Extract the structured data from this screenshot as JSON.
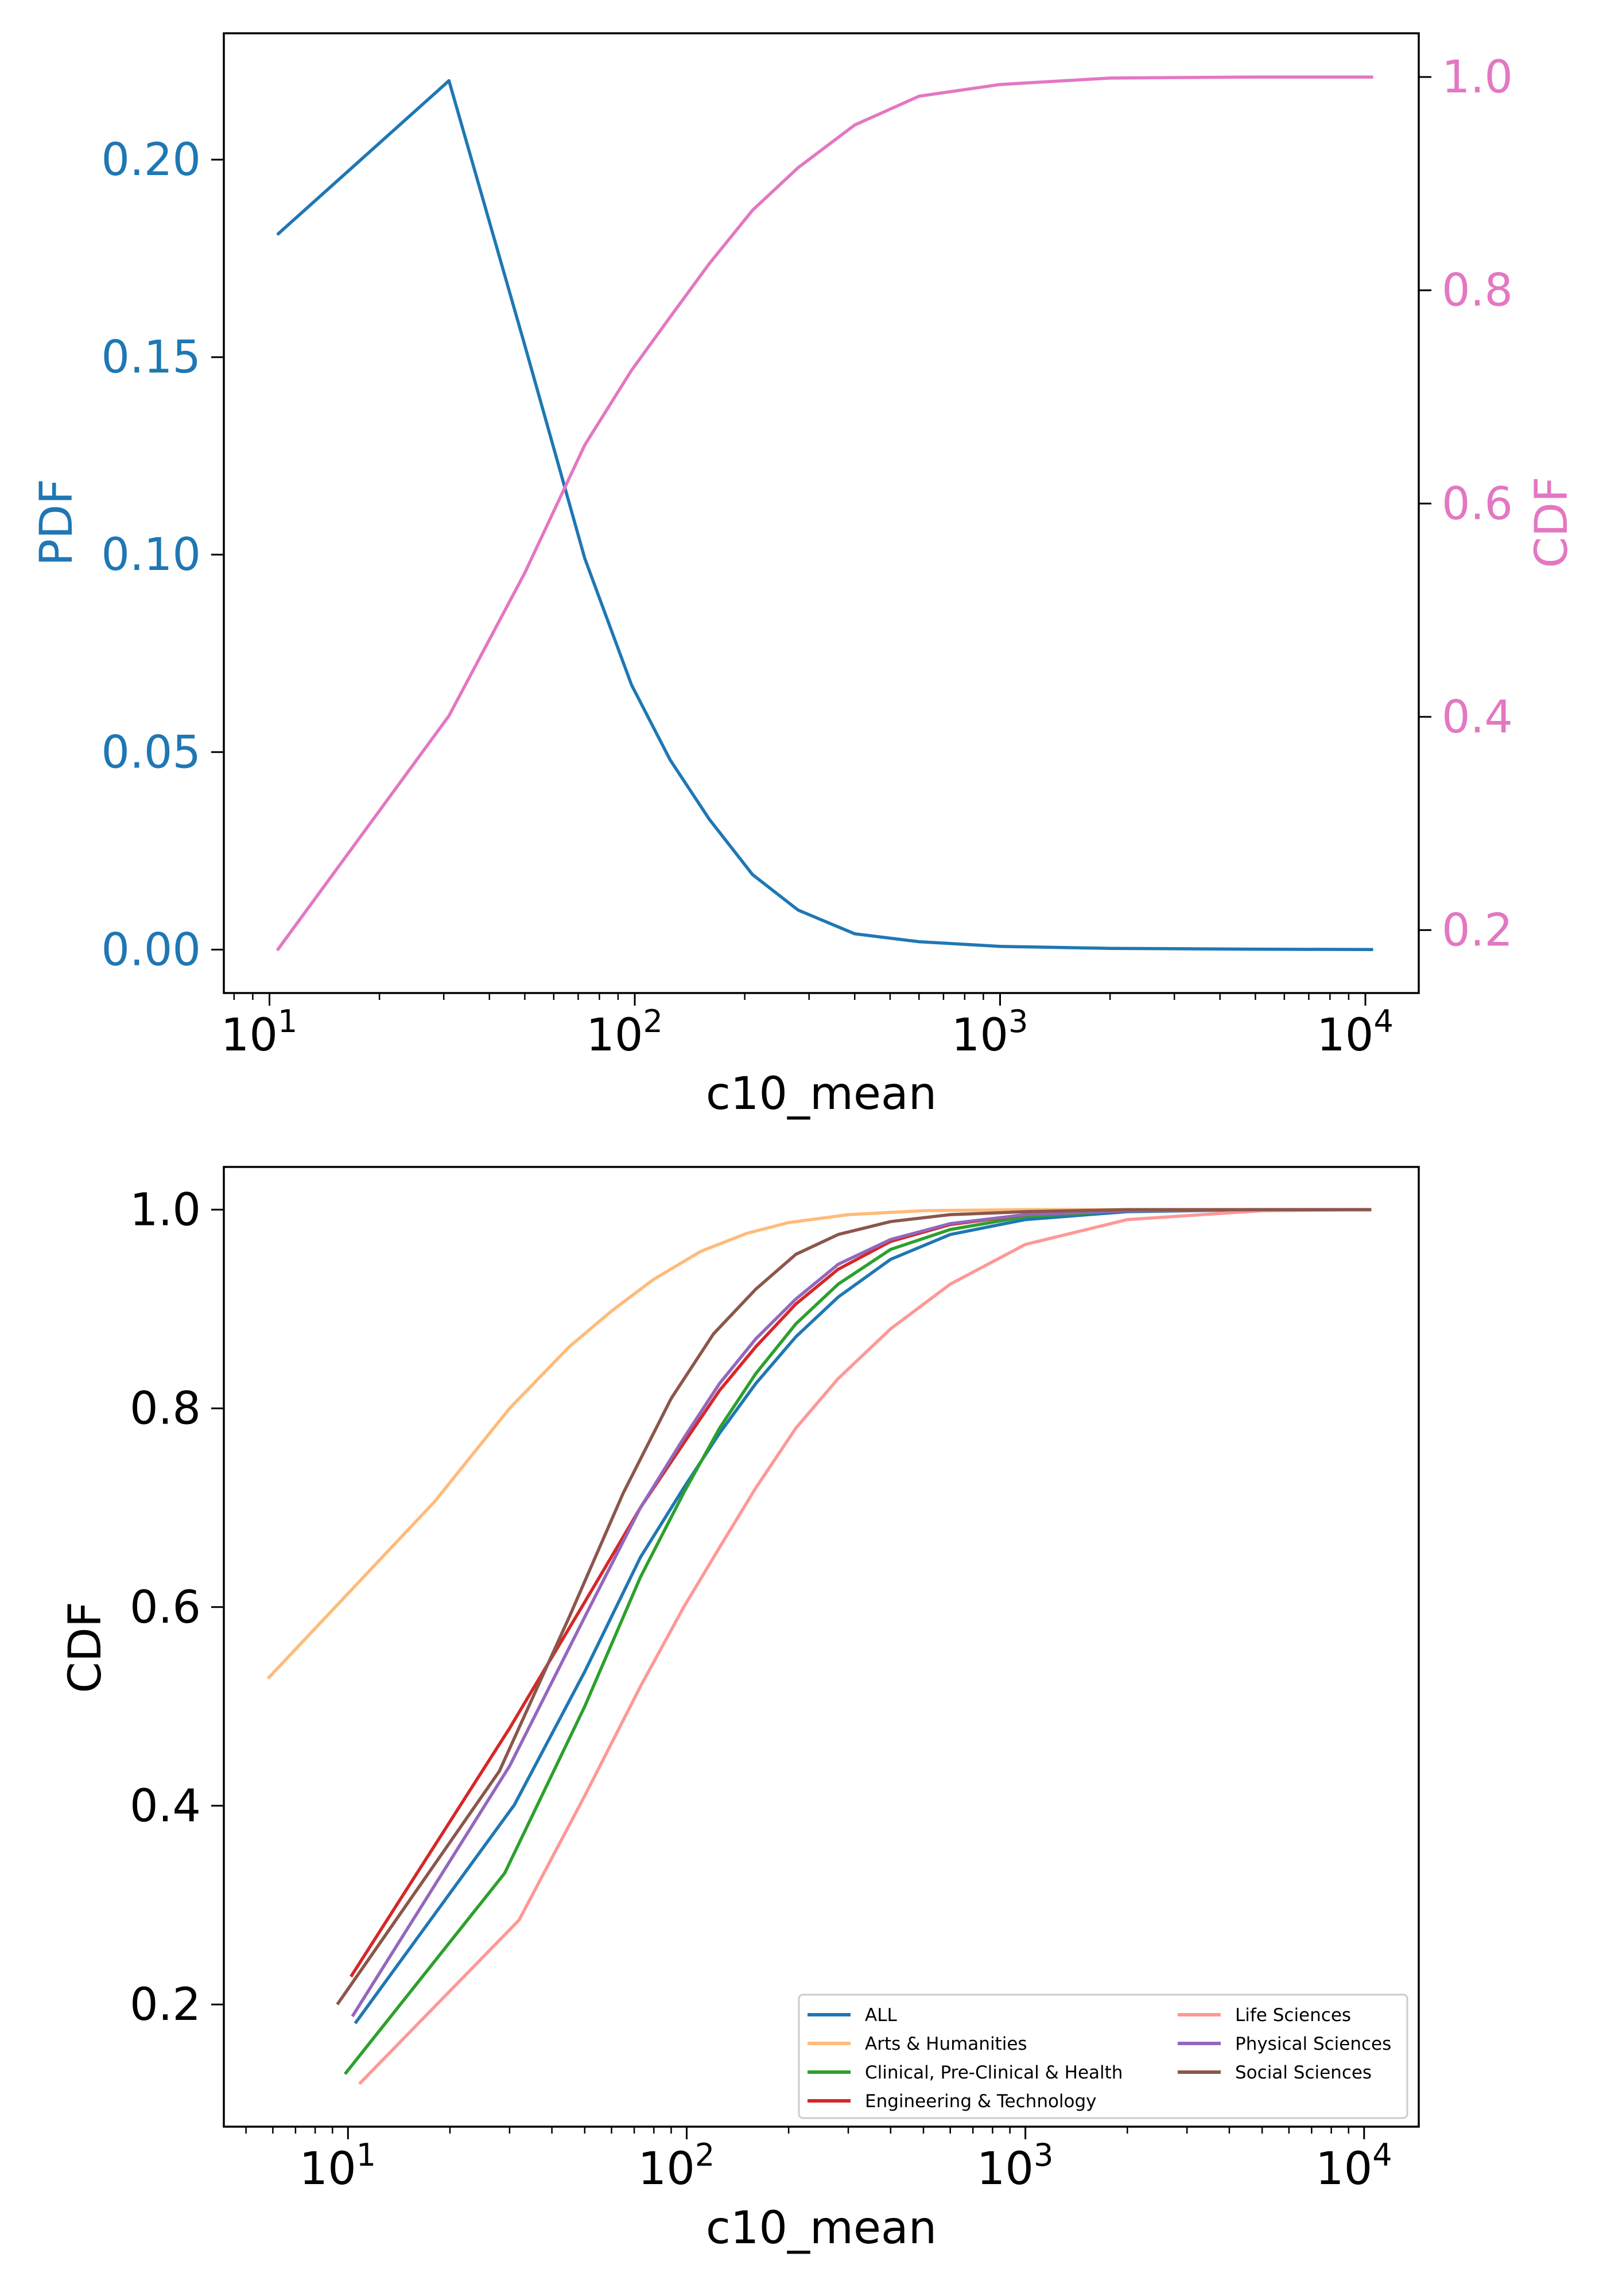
{
  "colors": {
    "pdf": "#1f77b4",
    "cdf": "#e377c2",
    "axis": "#000000"
  },
  "chart_data": [
    {
      "type": "line",
      "xlabel": "c10_mean",
      "xscale": "log",
      "xlim": [
        7.5,
        14000
      ],
      "x_ticks": [
        {
          "value": 10,
          "base": "10",
          "exp": "1"
        },
        {
          "value": 100,
          "base": "10",
          "exp": "2"
        },
        {
          "value": 1000,
          "base": "10",
          "exp": "3"
        },
        {
          "value": 10000,
          "base": "10",
          "exp": "4"
        }
      ],
      "ylabel_left": "PDF",
      "ylim_left": [
        -0.011,
        0.232
      ],
      "yticks_left": [
        "0.00",
        "0.05",
        "0.10",
        "0.15",
        "0.20"
      ],
      "ylabel_right": "CDF",
      "ylim_right": [
        0.141,
        1.041
      ],
      "yticks_right": [
        "0.2",
        "0.4",
        "0.6",
        "0.8",
        "1.0"
      ],
      "series": [
        {
          "name": "PDF",
          "axis": "left",
          "color": "#1f77b4",
          "x": [
            10.5,
            31,
            50,
            73,
            98,
            125,
            160,
            210,
            280,
            400,
            600,
            1000,
            2000,
            5000,
            10500
          ],
          "y": [
            0.181,
            0.22,
            0.153,
            0.099,
            0.067,
            0.048,
            0.033,
            0.019,
            0.01,
            0.004,
            0.002,
            0.0008,
            0.0003,
            0.0001,
            0.0
          ]
        },
        {
          "name": "CDF",
          "axis": "right",
          "color": "#e377c2",
          "x": [
            10.5,
            31,
            50,
            73,
            98,
            125,
            160,
            210,
            280,
            400,
            600,
            1000,
            2000,
            5000,
            10500
          ],
          "y": [
            0.181,
            0.401,
            0.535,
            0.655,
            0.725,
            0.775,
            0.825,
            0.875,
            0.915,
            0.955,
            0.982,
            0.993,
            0.999,
            1.0,
            1.0
          ]
        }
      ]
    },
    {
      "type": "line",
      "xlabel": "c10_mean",
      "xscale": "log",
      "xlim": [
        4.3,
        14500
      ],
      "x_ticks": [
        {
          "value": 10,
          "base": "10",
          "exp": "1"
        },
        {
          "value": 100,
          "base": "10",
          "exp": "2"
        },
        {
          "value": 1000,
          "base": "10",
          "exp": "3"
        },
        {
          "value": 10000,
          "base": "10",
          "exp": "4"
        }
      ],
      "ylabel": "CDF",
      "ylim": [
        0.077,
        1.043
      ],
      "yticks": [
        "0.2",
        "0.4",
        "0.6",
        "0.8",
        "1.0"
      ],
      "legend": {
        "position": "lower-right",
        "columns": 2
      },
      "series": [
        {
          "name": "ALL",
          "color": "#1f77b4",
          "x": [
            10.5,
            31,
            50,
            73,
            98,
            125,
            160,
            210,
            280,
            400,
            600,
            1000,
            2000,
            5000,
            10500
          ],
          "y": [
            0.181,
            0.401,
            0.535,
            0.65,
            0.72,
            0.775,
            0.825,
            0.872,
            0.912,
            0.95,
            0.975,
            0.99,
            0.998,
            1.0,
            1.0
          ]
        },
        {
          "name": "Arts & Humanities",
          "color": "#ffbb78",
          "x": [
            5.8,
            18,
            30,
            45,
            60,
            80,
            110,
            150,
            200,
            300,
            500,
            1000,
            3000,
            10500
          ],
          "y": [
            0.528,
            0.706,
            0.8,
            0.862,
            0.898,
            0.93,
            0.958,
            0.976,
            0.987,
            0.995,
            0.999,
            1.0,
            1.0,
            1.0
          ]
        },
        {
          "name": "Clinical, Pre-Clinical & Health",
          "color": "#2ca02c",
          "x": [
            9.8,
            29,
            50,
            73,
            98,
            125,
            160,
            210,
            280,
            400,
            600,
            1000,
            2000,
            5000,
            10500
          ],
          "y": [
            0.13,
            0.332,
            0.5,
            0.63,
            0.715,
            0.78,
            0.835,
            0.885,
            0.925,
            0.96,
            0.98,
            0.993,
            0.999,
            1.0,
            1.0
          ]
        },
        {
          "name": "Engineering & Technology",
          "color": "#d62728",
          "x": [
            10.2,
            30,
            50,
            73,
            98,
            125,
            160,
            210,
            280,
            400,
            600,
            1000,
            2000,
            5000,
            10500
          ],
          "y": [
            0.228,
            0.478,
            0.605,
            0.7,
            0.765,
            0.818,
            0.862,
            0.905,
            0.94,
            0.968,
            0.985,
            0.995,
            0.999,
            1.0,
            1.0
          ]
        },
        {
          "name": "Life Sciences",
          "color": "#ff9896",
          "x": [
            10.8,
            32,
            50,
            73,
            98,
            125,
            160,
            210,
            280,
            400,
            600,
            1000,
            2000,
            5000,
            10500
          ],
          "y": [
            0.12,
            0.285,
            0.41,
            0.52,
            0.6,
            0.66,
            0.72,
            0.78,
            0.83,
            0.88,
            0.925,
            0.965,
            0.99,
            0.999,
            1.0
          ]
        },
        {
          "name": "Physical Sciences",
          "color": "#9467bd",
          "x": [
            10.3,
            30,
            50,
            73,
            98,
            125,
            160,
            210,
            280,
            400,
            600,
            1000,
            2000,
            5000,
            10500
          ],
          "y": [
            0.188,
            0.44,
            0.59,
            0.7,
            0.77,
            0.825,
            0.87,
            0.91,
            0.945,
            0.97,
            0.986,
            0.995,
            0.999,
            1.0,
            1.0
          ]
        },
        {
          "name": "Social Sciences",
          "color": "#8c564b",
          "x": [
            9.3,
            28,
            45,
            65,
            90,
            120,
            160,
            210,
            280,
            400,
            600,
            1000,
            2000,
            5000,
            10500
          ],
          "y": [
            0.2,
            0.435,
            0.59,
            0.715,
            0.81,
            0.875,
            0.92,
            0.955,
            0.975,
            0.988,
            0.995,
            0.998,
            1.0,
            1.0,
            1.0
          ]
        }
      ]
    }
  ]
}
